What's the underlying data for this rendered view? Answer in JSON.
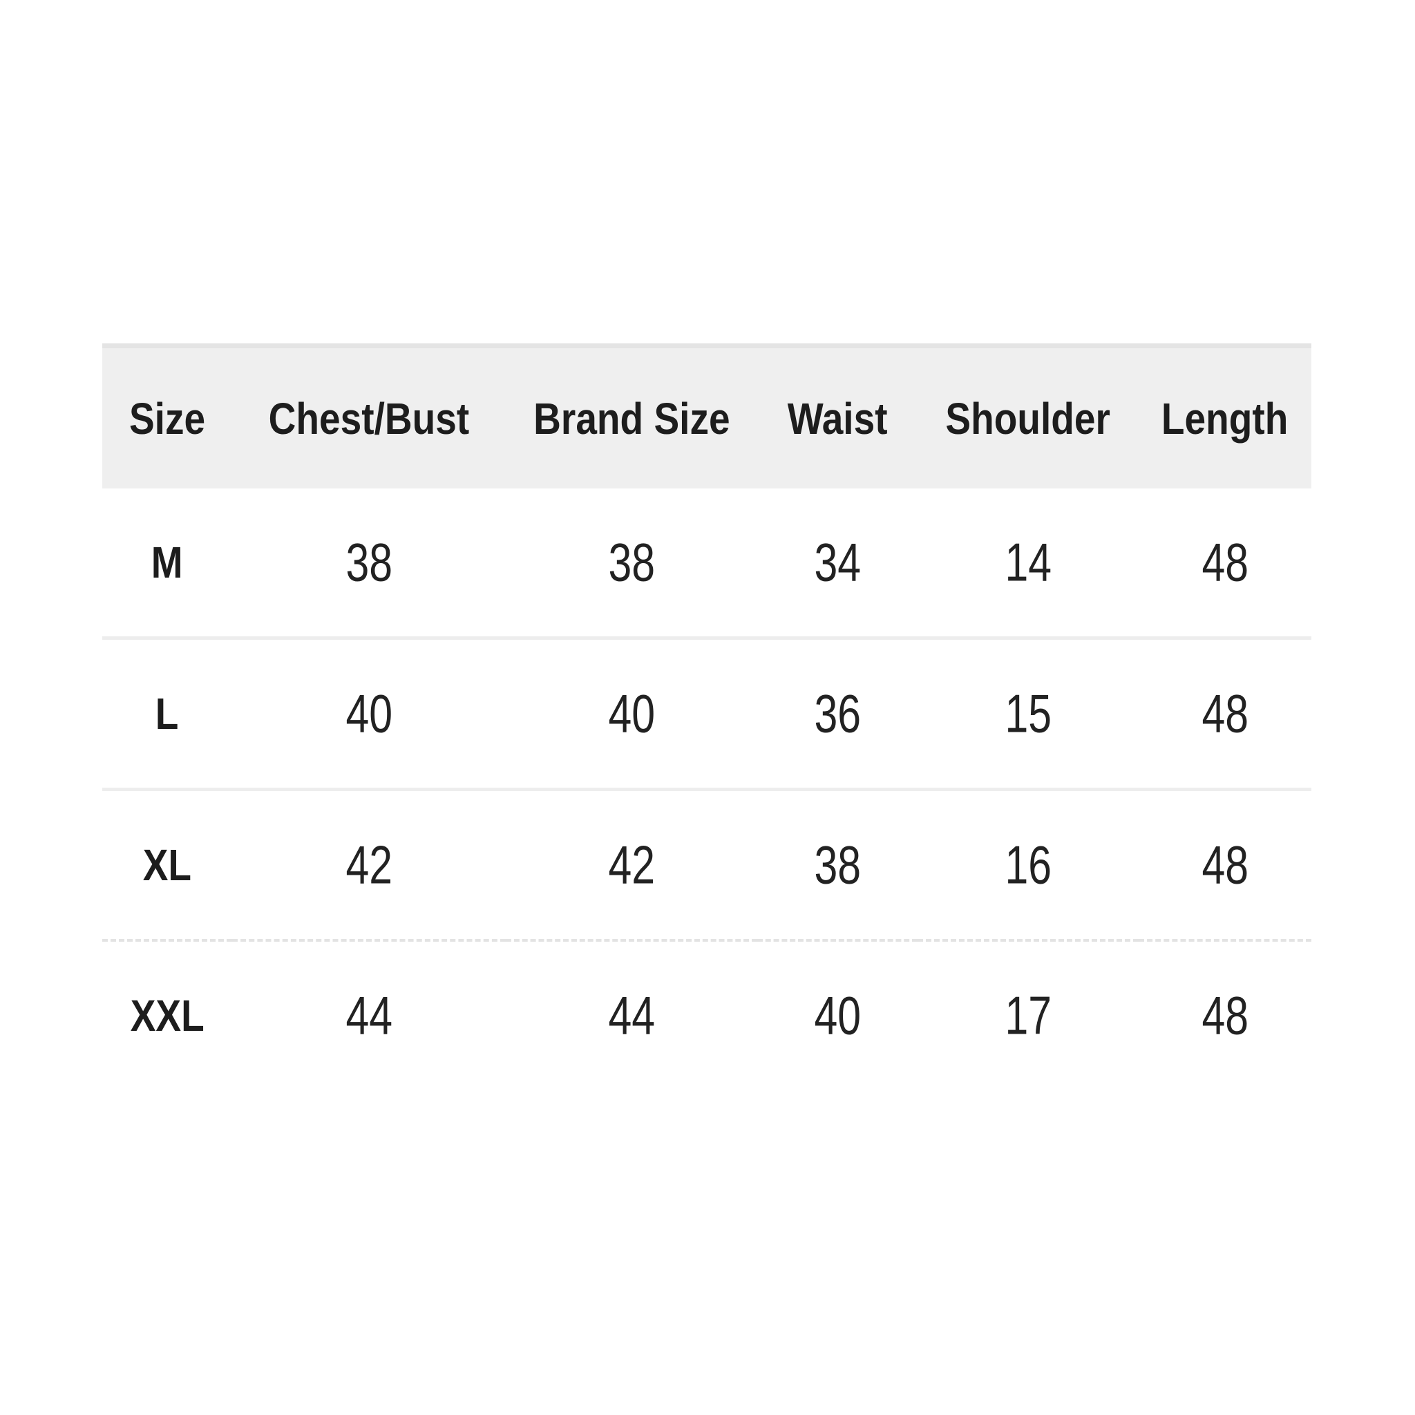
{
  "size_chart": {
    "columns": [
      "Size",
      "Chest/Bust",
      "Brand Size",
      "Waist",
      "Shoulder",
      "Length"
    ],
    "rows": [
      {
        "cells": [
          "M",
          "38",
          "38",
          "34",
          "14",
          "48"
        ]
      },
      {
        "cells": [
          "L",
          "40",
          "40",
          "36",
          "15",
          "48"
        ]
      },
      {
        "cells": [
          "XL",
          "42",
          "42",
          "38",
          "16",
          "48"
        ]
      },
      {
        "cells": [
          "XXL",
          "44",
          "44",
          "40",
          "17",
          "48"
        ]
      }
    ],
    "colors": {
      "page_background": "#ffffff",
      "header_background": "#efefef",
      "header_top_strip": "#e4e4e4",
      "separator_solid": "#ededed",
      "separator_dashed": "#e3e3e3",
      "text": "#1d1d1d"
    }
  }
}
